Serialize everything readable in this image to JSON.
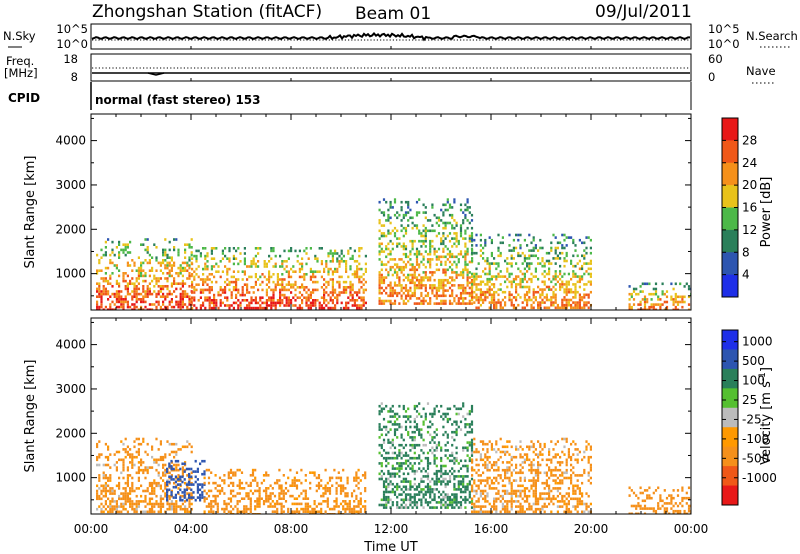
{
  "header": {
    "title": "Zhongshan Station (fitACF)",
    "beam": "Beam 01",
    "date": "09/Jul/2011"
  },
  "strips": {
    "nsky": {
      "label": "N.Sky",
      "left_ticks": [
        "10^5",
        "10^0"
      ],
      "right_label": "N.Search",
      "right_ticks": [
        "10^5",
        "10^0"
      ]
    },
    "freq": {
      "label_line1": "Freq.",
      "label_line2": "[MHz]",
      "left_ticks": [
        "18",
        "8"
      ],
      "right_label": "Nave",
      "right_ticks": [
        "60",
        "0"
      ]
    },
    "cpid": {
      "label": "CPID",
      "text": "normal (fast stereo) 153"
    }
  },
  "colors": {
    "power": [
      "#1f2fe8",
      "#2d55b0",
      "#2a7f5a",
      "#4cb848",
      "#e8c21a",
      "#f5901a",
      "#f05818",
      "#e81818"
    ],
    "velocity": [
      "#e81818",
      "#f05818",
      "#f5901a",
      "#ff9900",
      "#bcbcbc",
      "#55c030",
      "#2a7f5a",
      "#2d55b0",
      "#1f2fe8"
    ]
  },
  "chart_data": [
    {
      "type": "heatmap",
      "name": "power",
      "xlabel": "",
      "ylabel": "Slant Range [km]",
      "x_ticks": [
        "00:00",
        "04:00",
        "08:00",
        "12:00",
        "16:00",
        "20:00",
        "00:00"
      ],
      "xlim_hours": [
        0,
        24
      ],
      "y_ticks": [
        1000,
        2000,
        3000,
        4000
      ],
      "ylim": [
        180,
        4600
      ],
      "colorbar": {
        "label": "Power [dB]",
        "ticks": [
          4,
          8,
          12,
          16,
          20,
          24,
          28
        ],
        "range": [
          0,
          32
        ]
      },
      "regions_approx": [
        {
          "hours": [
            0.2,
            4.0
          ],
          "range_km": [
            200,
            1800
          ],
          "level_db": [
            6,
            28
          ]
        },
        {
          "hours": [
            4.0,
            11.0
          ],
          "range_km": [
            200,
            1600
          ],
          "level_db": [
            8,
            28
          ]
        },
        {
          "hours": [
            11.5,
            15.2
          ],
          "range_km": [
            300,
            2700
          ],
          "level_db": [
            4,
            24
          ]
        },
        {
          "hours": [
            15.2,
            20.0
          ],
          "range_km": [
            200,
            1900
          ],
          "level_db": [
            4,
            24
          ]
        },
        {
          "hours": [
            21.5,
            24.0
          ],
          "range_km": [
            200,
            800
          ],
          "level_db": [
            4,
            26
          ]
        }
      ]
    },
    {
      "type": "heatmap",
      "name": "velocity",
      "xlabel": "Time UT",
      "ylabel": "Slant Range [km]",
      "x_ticks": [
        "00:00",
        "04:00",
        "08:00",
        "12:00",
        "16:00",
        "20:00",
        "00:00"
      ],
      "xlim_hours": [
        0,
        24
      ],
      "y_ticks": [
        1000,
        2000,
        3000,
        4000
      ],
      "ylim": [
        180,
        4600
      ],
      "colorbar": {
        "label": "Velocity [m s^-1]",
        "ticks": [
          1000,
          500,
          100,
          25,
          -25,
          -100,
          -500,
          -1000
        ]
      },
      "regions_approx": [
        {
          "hours": [
            0.2,
            4.0
          ],
          "range_km": [
            200,
            1900
          ],
          "velocity": [
            -500,
            25
          ]
        },
        {
          "hours": [
            3.0,
            4.5
          ],
          "range_km": [
            500,
            1400
          ],
          "velocity": [
            500,
            1000
          ]
        },
        {
          "hours": [
            4.5,
            11.0
          ],
          "range_km": [
            200,
            1200
          ],
          "velocity": [
            -500,
            -25
          ]
        },
        {
          "hours": [
            11.5,
            15.2
          ],
          "range_km": [
            300,
            2700
          ],
          "velocity": [
            -25,
            500
          ]
        },
        {
          "hours": [
            15.2,
            20.0
          ],
          "range_km": [
            200,
            1900
          ],
          "velocity": [
            -500,
            25
          ]
        },
        {
          "hours": [
            21.5,
            24.0
          ],
          "range_km": [
            200,
            800
          ],
          "velocity": [
            -500,
            -100
          ]
        }
      ]
    }
  ]
}
